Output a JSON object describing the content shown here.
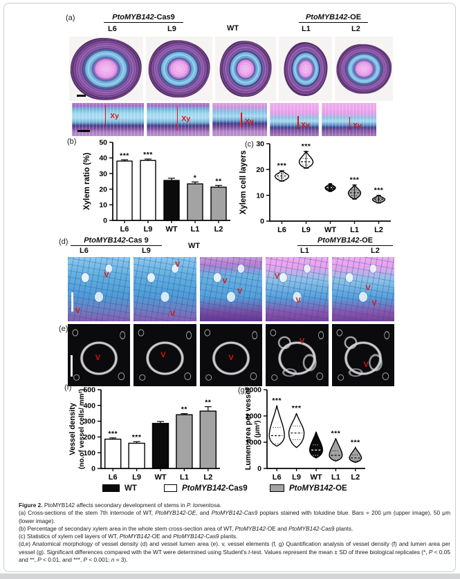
{
  "panel_a": {
    "letter": "(a)",
    "group_cas9_italic": "PtoMYB142",
    "group_cas9_rest": "-Cas9",
    "group_oe_italic": "PtoMYB142",
    "group_oe_rest": "-OE",
    "wt_label": "WT",
    "col_labels": [
      "L6",
      "L9",
      "WT",
      "L1",
      "L2"
    ],
    "xy_label": "Xy"
  },
  "panel_d": {
    "letter": "(d)",
    "group_cas9_italic": "PtoMYB142",
    "group_cas9_rest": "-Cas 9",
    "group_oe_italic": "PtoMYB142",
    "group_oe_rest": "-OE",
    "col_labels": [
      "L6",
      "L9",
      "WT",
      "L1",
      "L2"
    ],
    "v_label": "V"
  },
  "panel_e": {
    "letter": "(e)",
    "v_label": "V"
  },
  "chart_data": [
    {
      "id": "b",
      "panel_letter": "(b)",
      "type": "bar",
      "title": "",
      "ylabel_lines": [
        "Xylem ratio (%)"
      ],
      "ylim": [
        0,
        50
      ],
      "yticks": [
        0,
        10,
        20,
        30,
        40,
        50
      ],
      "categories": [
        "L6",
        "L9",
        "WT",
        "L1",
        "L2"
      ],
      "values": [
        38,
        38.4,
        25.6,
        23.4,
        21.3
      ],
      "errors": [
        0.8,
        0.9,
        1.4,
        1.2,
        1.1
      ],
      "sig": [
        "***",
        "***",
        "",
        "*",
        "**"
      ],
      "fills": [
        "white",
        "white",
        "black",
        "gray",
        "gray"
      ],
      "grid": false,
      "legend_position": "none"
    },
    {
      "id": "c",
      "panel_letter": "(c)",
      "type": "violin",
      "title": "",
      "ylabel_lines": [
        "Xylem cell layers"
      ],
      "ylim": [
        0,
        30
      ],
      "yticks": [
        0,
        10,
        20,
        30
      ],
      "categories": [
        "L6",
        "L9",
        "WT",
        "L1",
        "L2"
      ],
      "medians": [
        17.5,
        23,
        13,
        11,
        8.5
      ],
      "mins": [
        15.5,
        20.5,
        11.5,
        8.5,
        7
      ],
      "maxs": [
        19.5,
        27,
        14.5,
        14,
        10
      ],
      "rel_widths": [
        1,
        1,
        0.75,
        0.9,
        0.9
      ],
      "sig": [
        "***",
        "***",
        "",
        "***",
        "***"
      ],
      "fills": [
        "white",
        "white",
        "black",
        "gray",
        "gray"
      ],
      "grid": false,
      "legend_position": "none"
    },
    {
      "id": "f",
      "panel_letter": "(f)",
      "type": "bar",
      "title": "",
      "ylabel_lines": [
        "Vessel density",
        "(no.of vessel cells/ mm²)"
      ],
      "ylim": [
        0,
        500
      ],
      "yticks": [
        0,
        100,
        200,
        300,
        400,
        500
      ],
      "categories": [
        "L6",
        "L9",
        "WT",
        "L1",
        "L2"
      ],
      "values": [
        186,
        160,
        286,
        341,
        364
      ],
      "errors": [
        8,
        10,
        12,
        7,
        28
      ],
      "sig": [
        "***",
        "***",
        "",
        "**",
        "**"
      ],
      "fills": [
        "white",
        "white",
        "black",
        "gray",
        "gray"
      ],
      "grid": false,
      "legend_position": "none"
    },
    {
      "id": "g",
      "panel_letter": "(g)",
      "type": "violin",
      "title": "",
      "ylabel_lines": [
        "Lumen area per vessel",
        "(μm²)"
      ],
      "ylim": [
        0,
        3000
      ],
      "yticks": [
        0,
        1000,
        2000,
        3000
      ],
      "categories": [
        "L6",
        "L9",
        "WT",
        "L1",
        "L2"
      ],
      "medians": [
        1250,
        1350,
        700,
        500,
        400
      ],
      "mins": [
        850,
        800,
        400,
        280,
        230
      ],
      "maxs": [
        2400,
        2100,
        1400,
        1150,
        800
      ],
      "rel_widths": [
        1,
        1,
        0.85,
        0.85,
        0.8
      ],
      "sig": [
        "***",
        "***",
        "",
        "***",
        "***"
      ],
      "fills": [
        "white",
        "white",
        "black",
        "gray",
        "gray"
      ],
      "grid": false,
      "legend_position": "none"
    }
  ],
  "legend": {
    "items": [
      {
        "swatch": "#0b0b0b",
        "italic": "",
        "label": "WT"
      },
      {
        "swatch": "#ffffff",
        "italic": "PtoMYB142",
        "label": "-Cas9"
      },
      {
        "swatch": "#a3a3a3",
        "italic": "PtoMYB142",
        "label": "-OE"
      }
    ]
  },
  "caption": {
    "lines": [
      [
        {
          "t": "Figure 2.",
          "s": "b"
        },
        {
          "t": "  PtoMYB142 affects secondary development of stems in ",
          "s": ""
        },
        {
          "t": "P. tomentosa",
          "s": "i"
        },
        {
          "t": ".",
          "s": ""
        }
      ],
      [
        {
          "t": "(a) Cross-sections of the stem 7th internode of WT, ",
          "s": ""
        },
        {
          "t": "PtoMYB142-OE",
          "s": "i"
        },
        {
          "t": ", and ",
          "s": ""
        },
        {
          "t": "PtoMYB142-Cas9",
          "s": "i"
        },
        {
          "t": " poplars stained with toluidine blue. Bars = 200 μm (upper image), 50 μm (lower image).",
          "s": ""
        }
      ],
      [
        {
          "t": "(b) Percentage of secondary xylem area in the whole stem cross-section area of WT, ",
          "s": ""
        },
        {
          "t": "PtoMYB142",
          "s": "i"
        },
        {
          "t": "-OE and ",
          "s": ""
        },
        {
          "t": "PtoMYB142",
          "s": "i"
        },
        {
          "t": "-Cas9 plants.",
          "s": ""
        }
      ],
      [
        {
          "t": "(c) Statistics of xylem cell layers of WT, ",
          "s": ""
        },
        {
          "t": "PtoMYB142",
          "s": "i"
        },
        {
          "t": "-OE and ",
          "s": ""
        },
        {
          "t": "PtoMYB142",
          "s": "i"
        },
        {
          "t": "-Cas9 plants.",
          "s": ""
        }
      ],
      [
        {
          "t": "(d,e) Anatomical morphology of vessel density (d) and vessel lumen area (e). v, vessel elements (f, g) Quantification analysis of vessel density (f) and lumen area per vessel (g). Significant differences compared with the WT were determined using Student's ",
          "s": ""
        },
        {
          "t": "t",
          "s": "i"
        },
        {
          "t": "-test. Values represent the mean ± SD of three biological replicates (*, ",
          "s": ""
        },
        {
          "t": "P",
          "s": "i"
        },
        {
          "t": " < 0.05 and **, ",
          "s": ""
        },
        {
          "t": "P",
          "s": "i"
        },
        {
          "t": " < 0.01, and ***, ",
          "s": ""
        },
        {
          "t": "P",
          "s": "i"
        },
        {
          "t": " < 0.001; ",
          "s": ""
        },
        {
          "t": "n",
          "s": "i"
        },
        {
          "t": " = 3).",
          "s": ""
        }
      ]
    ]
  },
  "colors": {
    "marker_red": "#e01212",
    "bar_white": "#ffffff",
    "bar_black": "#0b0b0b",
    "bar_gray": "#a3a3a3",
    "axis": "#000000"
  }
}
